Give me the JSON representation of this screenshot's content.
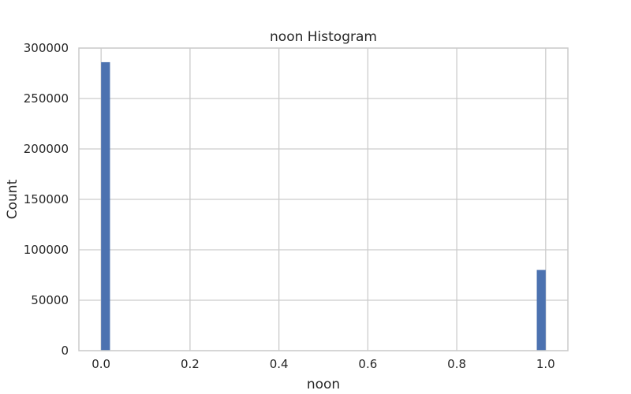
{
  "chart_data": {
    "type": "bar",
    "title": "noon Histogram",
    "xlabel": "noon",
    "ylabel": "Count",
    "xlim": [
      -0.05,
      1.05
    ],
    "ylim": [
      0,
      300000
    ],
    "x_ticks": [
      0.0,
      0.2,
      0.4,
      0.6,
      0.8,
      1.0
    ],
    "x_tick_labels": [
      "0.0",
      "0.2",
      "0.4",
      "0.6",
      "0.8",
      "1.0"
    ],
    "y_ticks": [
      0,
      50000,
      100000,
      150000,
      200000,
      250000,
      300000
    ],
    "y_tick_labels": [
      "0",
      "50000",
      "100000",
      "150000",
      "200000",
      "250000",
      "300000"
    ],
    "bins": [
      {
        "x0": 0.0,
        "x1": 0.02,
        "count": 286000
      },
      {
        "x0": 0.98,
        "x1": 1.0,
        "count": 80000
      }
    ],
    "grid": true,
    "colors": {
      "bar": "#4c72b0",
      "grid": "#cccccc",
      "spine": "#cccccc",
      "text": "#262626"
    }
  }
}
